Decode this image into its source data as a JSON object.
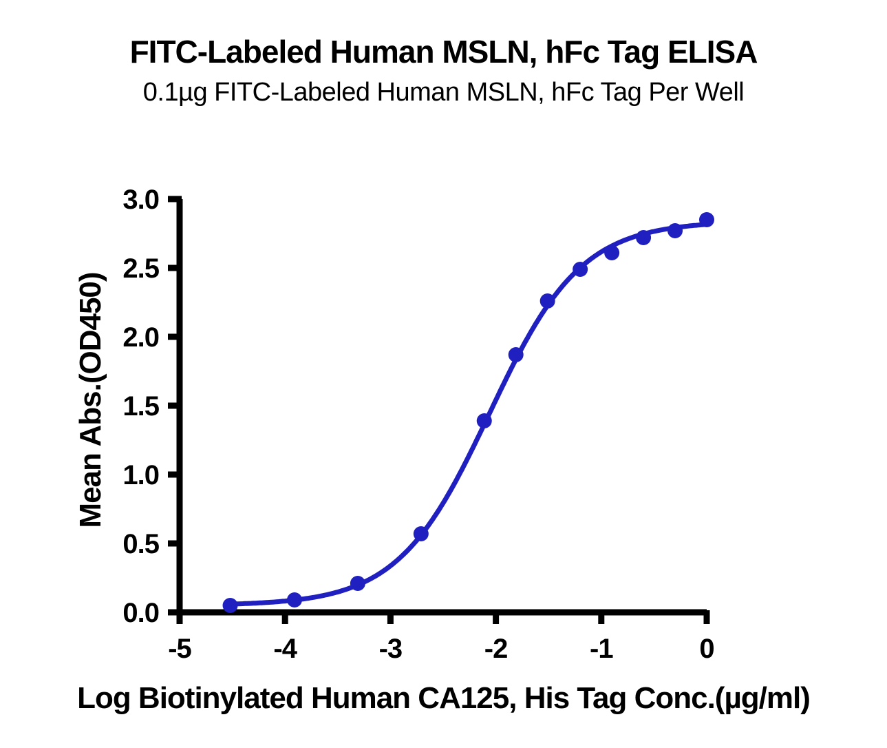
{
  "chart": {
    "title": "FITC-Labeled Human MSLN, hFc Tag ELISA",
    "subtitle": "0.1µg FITC-Labeled Human MSLN, hFc Tag Per Well",
    "x_label": "Log Biotinylated Human CA125, His Tag Conc.(µg/ml)",
    "y_label": "Mean Abs.(OD450)"
  },
  "chart_data": {
    "type": "scatter",
    "title": "FITC-Labeled Human MSLN, hFc Tag ELISA",
    "subtitle": "0.1µg FITC-Labeled Human MSLN, hFc Tag Per Well",
    "xlabel": "Log Biotinylated Human CA125, His Tag Conc.(µg/ml)",
    "ylabel": "Mean Abs.(OD450)",
    "xlim": [
      -5,
      0
    ],
    "ylim": [
      0,
      3
    ],
    "x_ticks": [
      -5,
      -4,
      -3,
      -2,
      -1,
      0
    ],
    "x_tick_labels": [
      "-5",
      "-4",
      "-3",
      "-2",
      "-1",
      "0"
    ],
    "y_ticks": [
      0,
      0.5,
      1,
      1.5,
      2,
      2.5,
      3
    ],
    "y_tick_labels": [
      "0.0",
      "0.5",
      "1.0",
      "1.5",
      "2.0",
      "2.5",
      "3.0"
    ],
    "grid": false,
    "legend": false,
    "series": [
      {
        "name": "FITC-Labeled Human MSLN, hFc Tag",
        "color": "#2020c0",
        "marker": "circle",
        "x": [
          -4.52,
          -3.91,
          -3.31,
          -2.71,
          -2.11,
          -1.81,
          -1.51,
          -1.2,
          -0.9,
          -0.6,
          -0.3,
          0
        ],
        "y": [
          0.05,
          0.09,
          0.21,
          0.57,
          1.39,
          1.87,
          2.26,
          2.49,
          2.61,
          2.72,
          2.77,
          2.85
        ]
      }
    ],
    "fit_curve": {
      "model": "4PL",
      "bottom": 0.05,
      "top": 2.84,
      "logEC50": -2.06,
      "hill": 1.0,
      "x_start": -4.52,
      "x_end": 0
    },
    "colors": {
      "series_blue": "#2020c0",
      "axis_black": "#000000",
      "background": "#ffffff"
    }
  }
}
